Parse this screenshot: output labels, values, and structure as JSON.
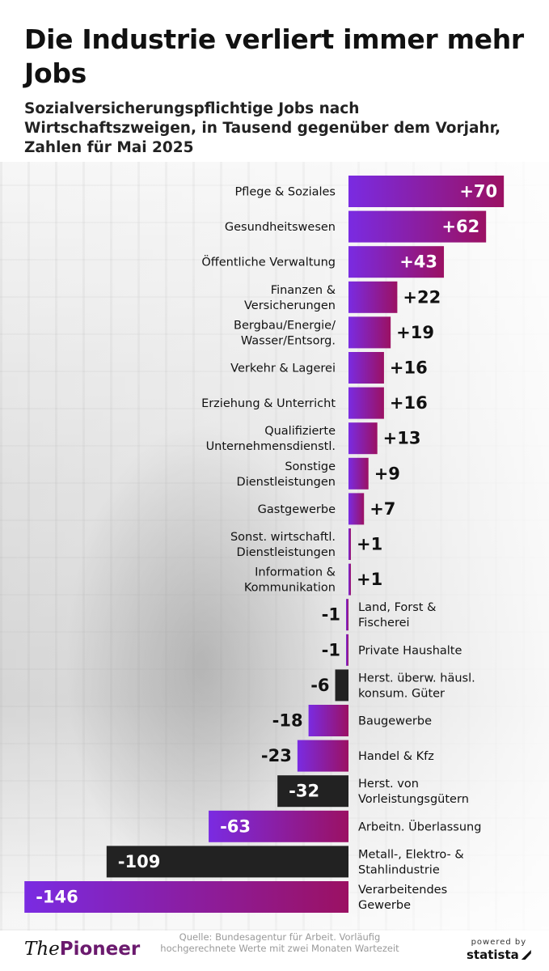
{
  "title": "Die Industrie verliert immer mehr Jobs",
  "subtitle": "Sozialversicherungspflichtige Jobs nach Wirtschaftszweigen, in Tausend gegenüber dem Vorjahr, Zahlen für Mai 2025",
  "source": "Quelle: Bundesagentur für Arbeit. Vorläufig hochgerechnete Werte mit zwei Monaten Wartezeit",
  "branding": {
    "the": "The",
    "pioneer": "Pioneer",
    "powered_by": "powered by",
    "statista": "statista"
  },
  "colors": {
    "gradient_start": "#7a2be2",
    "gradient_end": "#9b1163",
    "highlight_bar": "#222222"
  },
  "chart_data": {
    "type": "bar",
    "orientation": "horizontal",
    "categories": [
      "Pflege & Soziales",
      "Gesundheitswesen",
      "Öffentliche Verwaltung",
      "Finanzen & Versicherungen",
      "Bergbau/Energie/ Wasser/Entsorg.",
      "Verkehr & Lagerei",
      "Erziehung & Unterricht",
      "Qualifizierte Unternehmensdienstl.",
      "Sonstige Dienstleistungen",
      "Gastgewerbe",
      "Sonst. wirtschaftl. Dienstleistungen",
      "Information & Kommunikation",
      "Land, Forst & Fischerei",
      "Private Haushalte",
      "Herst. überw. häusl. konsum. Güter",
      "Baugewerbe",
      "Handel & Kfz",
      "Herst. von Vorleistungsgütern",
      "Arbeitn. Überlassung",
      "Metall-, Elektro- & Stahlindustrie",
      "Verarbeitendes Gewerbe"
    ],
    "category_lines": [
      [
        "Pflege & Soziales"
      ],
      [
        "Gesundheitswesen"
      ],
      [
        "Öffentliche Verwaltung"
      ],
      [
        "Finanzen &",
        "Versicherungen"
      ],
      [
        "Bergbau/Energie/",
        "Wasser/Entsorg."
      ],
      [
        "Verkehr & Lagerei"
      ],
      [
        "Erziehung & Unterricht"
      ],
      [
        "Qualifizierte",
        "Unternehmensdienstl."
      ],
      [
        "Sonstige",
        "Dienstleistungen"
      ],
      [
        "Gastgewerbe"
      ],
      [
        "Sonst. wirtschaftl.",
        "Dienstleistungen"
      ],
      [
        "Information &",
        "Kommunikation"
      ],
      [
        "Land, Forst &",
        "Fischerei"
      ],
      [
        "Private Haushalte"
      ],
      [
        "Herst. überw. häusl.",
        "konsum. Güter"
      ],
      [
        "Baugewerbe"
      ],
      [
        "Handel & Kfz"
      ],
      [
        "Herst. von",
        "Vorleistungsgütern"
      ],
      [
        "Arbeitn. Überlassung"
      ],
      [
        "Metall-, Elektro- &",
        "Stahlindustrie"
      ],
      [
        "Verarbeitendes",
        "Gewerbe"
      ]
    ],
    "values": [
      70,
      62,
      43,
      22,
      19,
      16,
      16,
      13,
      9,
      7,
      1,
      1,
      -1,
      -1,
      -6,
      -18,
      -23,
      -32,
      -63,
      -109,
      -146
    ],
    "value_labels": [
      "+70",
      "+62",
      "+43",
      "+22",
      "+19",
      "+16",
      "+16",
      "+13",
      "+9",
      "+7",
      "+1",
      "+1",
      "-1",
      "-1",
      "-6",
      "-18",
      "-23",
      "-32",
      "-63",
      "-109",
      "-146"
    ],
    "highlighted": [
      false,
      false,
      false,
      false,
      false,
      false,
      false,
      false,
      false,
      false,
      false,
      false,
      false,
      false,
      true,
      false,
      false,
      true,
      false,
      true,
      false
    ],
    "units": "Tausend",
    "grid": false,
    "legend": "none"
  }
}
